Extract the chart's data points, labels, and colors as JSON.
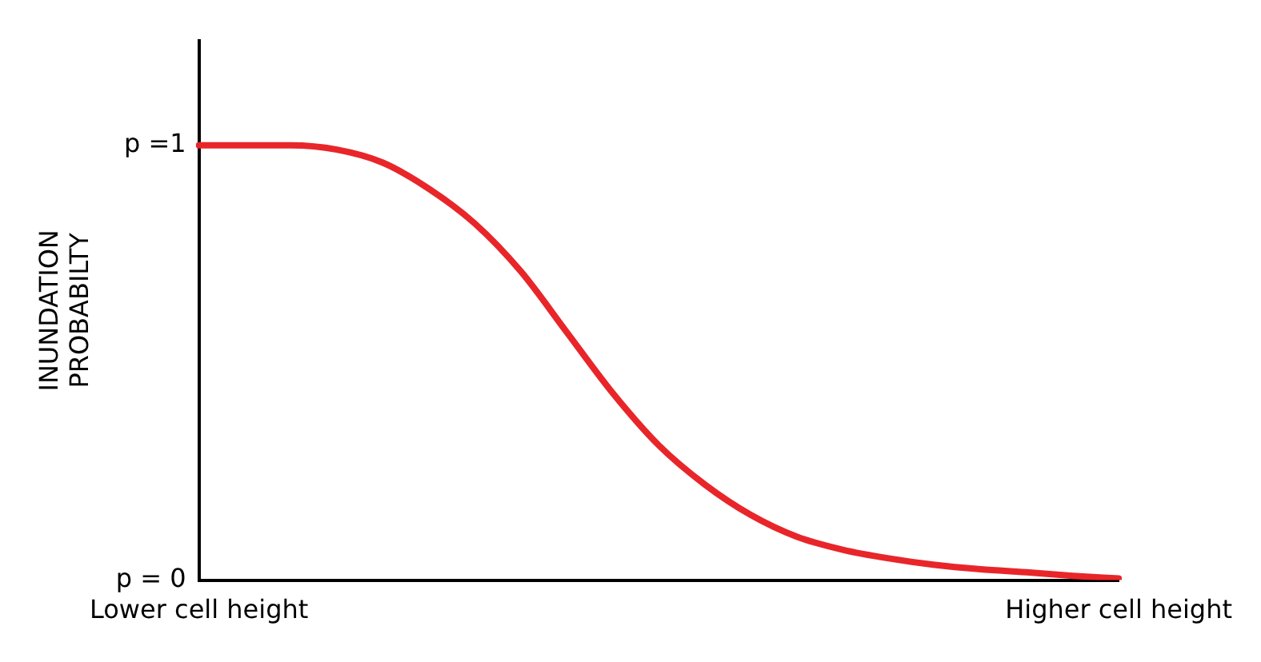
{
  "chart_data": {
    "type": "line",
    "ylabel": "INUNDATION PROBABILTY",
    "categories": [
      "Lower cell height",
      null,
      null,
      null,
      null,
      null,
      null,
      null,
      null,
      null,
      null,
      null,
      null,
      null,
      null,
      null,
      null,
      null,
      null,
      null,
      "Higher cell height"
    ],
    "series": [
      {
        "color": "#e8262a",
        "values": [
          1,
          1,
          1,
          0.99,
          0.96,
          0.9,
          0.82,
          0.71,
          0.57,
          0.43,
          0.31,
          0.22,
          0.15,
          0.1,
          0.07,
          0.05,
          0.035,
          0.025,
          0.018,
          0.01,
          0.004
        ]
      }
    ],
    "ylim": [
      0,
      1.24
    ],
    "yticks": [
      {
        "value": 0,
        "label": "p = 0"
      },
      {
        "value": 1,
        "label": "p =1"
      }
    ],
    "grid": false,
    "legend": false,
    "marker": "none",
    "line_style": "solid"
  }
}
